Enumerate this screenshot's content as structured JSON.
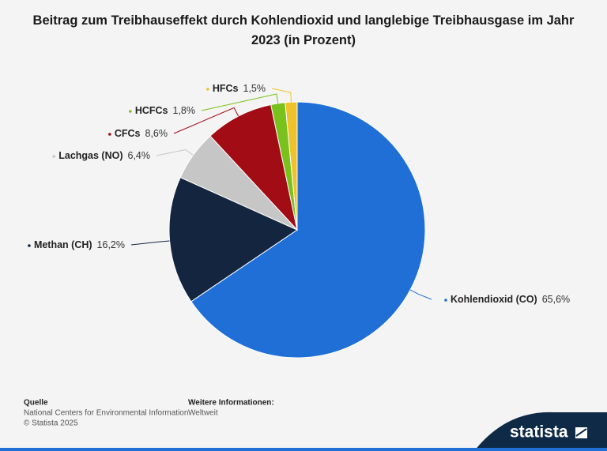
{
  "chart_data": {
    "type": "pie",
    "title": "Beitrag zum Treibhauseffekt durch Kohlendioxid und langlebige Treibhausgase im Jahr 2023 (in Prozent)",
    "categories": [
      "Kohlendioxid (CO)",
      "Methan (CH)",
      "Lachgas (NO)",
      "CFCs",
      "HCFCs",
      "HFCs"
    ],
    "values": [
      65.6,
      16.2,
      6.4,
      8.6,
      1.8,
      1.5
    ],
    "value_labels": [
      "65,6%",
      "16,2%",
      "6,4%",
      "8,6%",
      "1,8%",
      "1,5%"
    ],
    "colors": [
      "#1f6fd6",
      "#14263f",
      "#c6c6c6",
      "#a20c15",
      "#79c11c",
      "#efc22b"
    ]
  },
  "footer": {
    "source_title": "Quelle",
    "source": "National Centers for Environmental Information",
    "copyright": "© Statista 2025",
    "info_title": "Weitere Informationen:",
    "info": "Weltweit",
    "brand": "statista"
  }
}
